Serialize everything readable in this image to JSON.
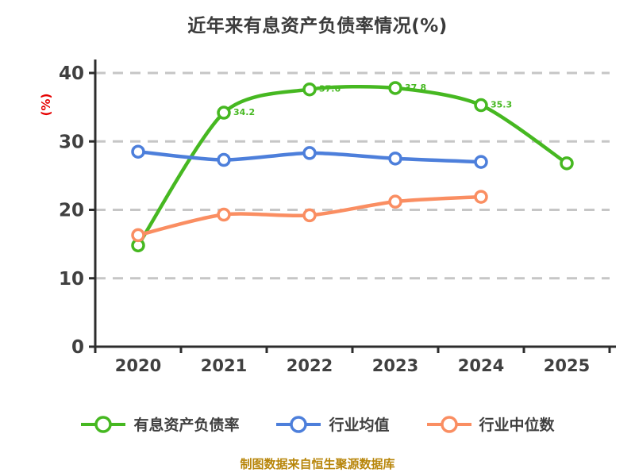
{
  "chart_data": {
    "type": "line",
    "title": "近年来有息资产负债率情况(%)",
    "categories": [
      "2020",
      "2021",
      "2022",
      "2023",
      "2024",
      "2025"
    ],
    "series": [
      {
        "name": "有息资产负债率",
        "color": "#46b821",
        "values": [
          14.8,
          34.2,
          37.6,
          37.8,
          35.3,
          26.8
        ],
        "point_labels": [
          "",
          "34.2",
          "37.6",
          "37.8",
          "35.3",
          ""
        ],
        "smooth": true
      },
      {
        "name": "行业均值",
        "color": "#4d7fdb",
        "values": [
          28.5,
          27.3,
          28.3,
          27.5,
          27.0,
          null
        ],
        "point_labels": [
          "",
          "",
          "",
          "",
          "",
          ""
        ],
        "smooth": true
      },
      {
        "name": "行业中位数",
        "color": "#fa8e62",
        "values": [
          16.3,
          19.3,
          19.2,
          21.2,
          21.9,
          null
        ],
        "point_labels": [
          "",
          "",
          "",
          "",
          "",
          ""
        ],
        "smooth": true
      }
    ],
    "xlabel": "",
    "ylabel": "(%)",
    "ylim": [
      0,
      40
    ],
    "y_ticks": [
      0,
      10,
      20,
      30,
      40
    ],
    "grid": "dashed-horizontal",
    "legend_position": "bottom"
  },
  "colors": {
    "title": "#3b3b3b",
    "axis": "#2d2d2d",
    "tick_label": "#404040",
    "grid": "#c6c6c6",
    "y_unit": "#e60000",
    "footer": "#b8860b",
    "marker_fill": "#ffffff"
  },
  "footer": {
    "text": "制图数据来自恒生聚源数据库"
  }
}
